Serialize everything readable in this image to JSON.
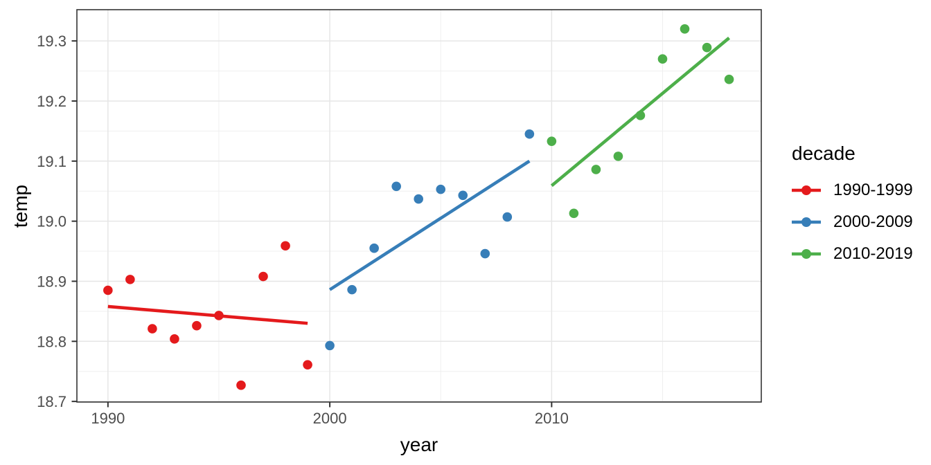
{
  "chart_data": {
    "type": "scatter",
    "title": "",
    "xlabel": "year",
    "ylabel": "temp",
    "legend_title": "decade",
    "legend_position": "right",
    "grid": true,
    "xlim": [
      1988.6,
      2019.45
    ],
    "ylim": [
      18.699,
      19.352
    ],
    "x_ticks": [
      {
        "value": 1990,
        "label": "1990"
      },
      {
        "value": 2000,
        "label": "2000"
      },
      {
        "value": 2010,
        "label": "2010"
      }
    ],
    "y_ticks": [
      {
        "value": 18.7,
        "label": "18.7"
      },
      {
        "value": 18.8,
        "label": "18.8"
      },
      {
        "value": 18.9,
        "label": "18.9"
      },
      {
        "value": 19.0,
        "label": "19.0"
      },
      {
        "value": 19.1,
        "label": "19.1"
      },
      {
        "value": 19.2,
        "label": "19.2"
      },
      {
        "value": 19.3,
        "label": "19.3"
      }
    ],
    "x_minor_ticks": [
      1995,
      2005,
      2015
    ],
    "y_minor_ticks": [
      18.75,
      18.85,
      18.95,
      19.05,
      19.15,
      19.25
    ],
    "colors": {
      "background": "#FFFFFF",
      "grid_major": "#E6E6E6",
      "grid_minor": "#EFEFEF",
      "panel_border": "#333333",
      "tick_mark": "#333333",
      "tick_label": "#4D4D4D",
      "axis_title": "#000000",
      "series_red": "#E41A1C",
      "series_blue": "#377EB8",
      "series_green": "#4DAF4A"
    },
    "series": [
      {
        "name": "1990-1999",
        "color": "#E41A1C",
        "x": [
          1990,
          1991,
          1992,
          1993,
          1994,
          1995,
          1996,
          1997,
          1998,
          1999
        ],
        "y": [
          18.885,
          18.903,
          18.821,
          18.804,
          18.826,
          18.843,
          18.727,
          18.908,
          18.959,
          18.761
        ],
        "trend": {
          "x1": 1990,
          "y1": 18.858,
          "x2": 1999,
          "y2": 18.83
        }
      },
      {
        "name": "2000-2009",
        "color": "#377EB8",
        "x": [
          2000,
          2001,
          2002,
          2003,
          2004,
          2005,
          2006,
          2007,
          2008,
          2009
        ],
        "y": [
          18.793,
          18.886,
          18.955,
          19.058,
          19.037,
          19.053,
          19.043,
          18.946,
          19.007,
          19.145
        ],
        "trend": {
          "x1": 2000,
          "y1": 18.886,
          "x2": 2009,
          "y2": 19.1
        }
      },
      {
        "name": "2010-2019",
        "color": "#4DAF4A",
        "x": [
          2010,
          2011,
          2012,
          2013,
          2014,
          2015,
          2016,
          2017,
          2018
        ],
        "y": [
          19.133,
          19.013,
          19.086,
          19.108,
          19.176,
          19.27,
          19.32,
          19.289,
          19.236
        ],
        "trend": {
          "x1": 2010,
          "y1": 19.059,
          "x2": 2018,
          "y2": 19.305
        }
      }
    ]
  }
}
